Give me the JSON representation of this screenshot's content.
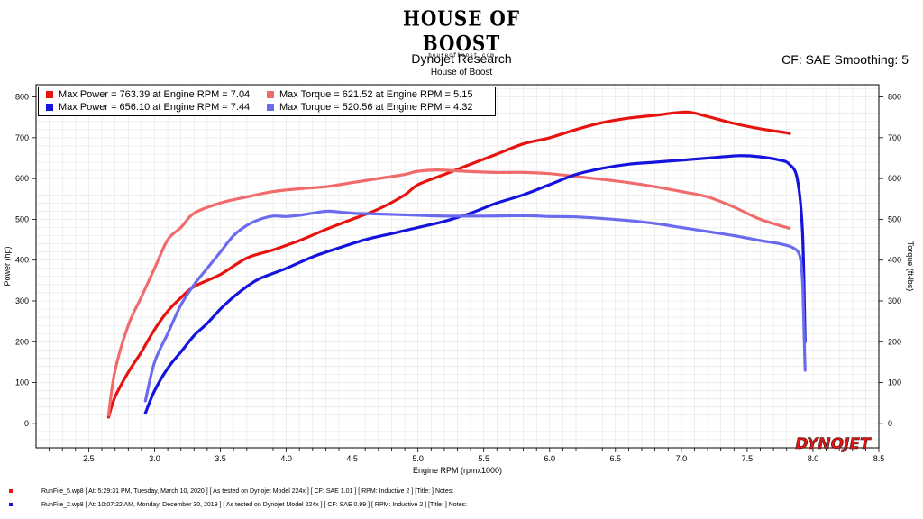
{
  "header": {
    "logo_text": "HOUSE OF BOOST",
    "logo_url": "houseofboost.com",
    "title": "Dynojet Research",
    "subtitle": "House of Boost",
    "cf_info": "CF: SAE Smoothing: 5"
  },
  "legend": [
    {
      "label": "Max Power = 763.39 at Engine RPM = 7.04",
      "color": "#e8120e"
    },
    {
      "label": "Max Torque = 621.52 at Engine RPM = 5.15",
      "color": "#f26b6b"
    },
    {
      "label": "Max Power = 656.10 at Engine RPM = 7.44",
      "color": "#1414dc"
    },
    {
      "label": "Max Torque = 520.56 at Engine RPM = 4.32",
      "color": "#6b6bef"
    }
  ],
  "brand": "DYNOJET",
  "footer": {
    "run1": "RunFile_5.wp8  [ At:  5:29:31 PM, Tuesday, March 10, 2020 ]  [ As tested on Dynojet Model 224x ]  [ CF: SAE 1.01 ]  [ RPM: Inductive 2 ]  [Title: ]   Notes:",
    "run2": "RunFile_2.wp8  [ At:  10:07:22 AM, Monday, December 30, 2019 ]  [ As tested on Dynojet Model 224x ]  [ CF: SAE 0.99 ]  [ RPM: Inductive 2 ]  [Title: ]   Notes:",
    "run1_color": "#e8120e",
    "run2_color": "#1414dc"
  },
  "chart_data": {
    "type": "line",
    "xlabel": "Engine RPM (rpmx1000)",
    "ylabel": "Power (hp)",
    "y2label": "Torque (ft-lbs)",
    "xlim": [
      2.1,
      8.5
    ],
    "ylim": [
      -60,
      830
    ],
    "xticks": [
      "2.5",
      "3.0",
      "3.5",
      "4.0",
      "4.5",
      "5.0",
      "5.5",
      "6.0",
      "6.5",
      "7.0",
      "7.5",
      "8.0",
      "8.5"
    ],
    "yticks": [
      "0",
      "100",
      "200",
      "300",
      "400",
      "500",
      "600",
      "700",
      "800"
    ],
    "grid": true,
    "legend_position": "top-left",
    "series": [
      {
        "name": "Max Power = 763.39 at Engine RPM = 7.04",
        "color": "#e8120e",
        "x": [
          2.65,
          2.7,
          2.8,
          2.9,
          3.0,
          3.1,
          3.2,
          3.3,
          3.5,
          3.7,
          3.9,
          4.1,
          4.3,
          4.5,
          4.7,
          4.9,
          5.0,
          5.2,
          5.4,
          5.6,
          5.8,
          6.0,
          6.2,
          6.4,
          6.6,
          6.8,
          7.04,
          7.2,
          7.4,
          7.6,
          7.8,
          7.82
        ],
        "y": [
          15,
          65,
          125,
          175,
          230,
          275,
          308,
          335,
          365,
          405,
          425,
          448,
          475,
          500,
          525,
          560,
          585,
          610,
          635,
          660,
          685,
          700,
          720,
          737,
          748,
          755,
          763,
          752,
          735,
          722,
          712,
          710
        ]
      },
      {
        "name": "Max Torque = 621.52 at Engine RPM = 5.15",
        "color": "#f26b6b",
        "x": [
          2.65,
          2.7,
          2.8,
          2.9,
          3.0,
          3.1,
          3.2,
          3.3,
          3.5,
          3.7,
          3.9,
          4.1,
          4.3,
          4.5,
          4.7,
          4.9,
          5.0,
          5.15,
          5.4,
          5.6,
          5.8,
          6.0,
          6.2,
          6.4,
          6.6,
          6.8,
          7.0,
          7.2,
          7.4,
          7.6,
          7.82
        ],
        "y": [
          20,
          130,
          240,
          310,
          380,
          450,
          480,
          515,
          540,
          555,
          568,
          575,
          580,
          590,
          600,
          610,
          618,
          621,
          617,
          615,
          615,
          612,
          605,
          598,
          590,
          580,
          568,
          555,
          530,
          500,
          478
        ]
      },
      {
        "name": "Max Power = 656.10 at Engine RPM = 7.44",
        "color": "#1414dc",
        "x": [
          2.93,
          3.0,
          3.1,
          3.2,
          3.3,
          3.4,
          3.5,
          3.6,
          3.7,
          3.8,
          4.0,
          4.2,
          4.4,
          4.6,
          4.8,
          5.0,
          5.2,
          5.4,
          5.6,
          5.8,
          6.0,
          6.2,
          6.4,
          6.6,
          6.8,
          7.0,
          7.2,
          7.44,
          7.6,
          7.75,
          7.82,
          7.88,
          7.92,
          7.94
        ],
        "y": [
          25,
          80,
          135,
          175,
          215,
          245,
          280,
          310,
          335,
          355,
          380,
          408,
          430,
          450,
          465,
          480,
          495,
          515,
          540,
          560,
          585,
          610,
          625,
          635,
          640,
          645,
          650,
          656,
          653,
          645,
          635,
          600,
          470,
          200
        ]
      },
      {
        "name": "Max Torque = 520.56 at Engine RPM = 4.32",
        "color": "#6b6bef",
        "x": [
          2.93,
          3.0,
          3.1,
          3.2,
          3.3,
          3.4,
          3.5,
          3.6,
          3.7,
          3.8,
          3.9,
          4.0,
          4.1,
          4.2,
          4.32,
          4.5,
          4.7,
          5.0,
          5.2,
          5.5,
          5.8,
          6.0,
          6.2,
          6.4,
          6.6,
          6.8,
          7.0,
          7.2,
          7.4,
          7.6,
          7.75,
          7.85,
          7.9,
          7.92,
          7.93,
          7.94
        ],
        "y": [
          55,
          150,
          220,
          290,
          340,
          380,
          420,
          460,
          485,
          500,
          508,
          507,
          510,
          515,
          520,
          515,
          513,
          510,
          508,
          508,
          509,
          507,
          506,
          502,
          497,
          490,
          480,
          470,
          460,
          448,
          440,
          430,
          410,
          350,
          250,
          130
        ]
      }
    ]
  }
}
